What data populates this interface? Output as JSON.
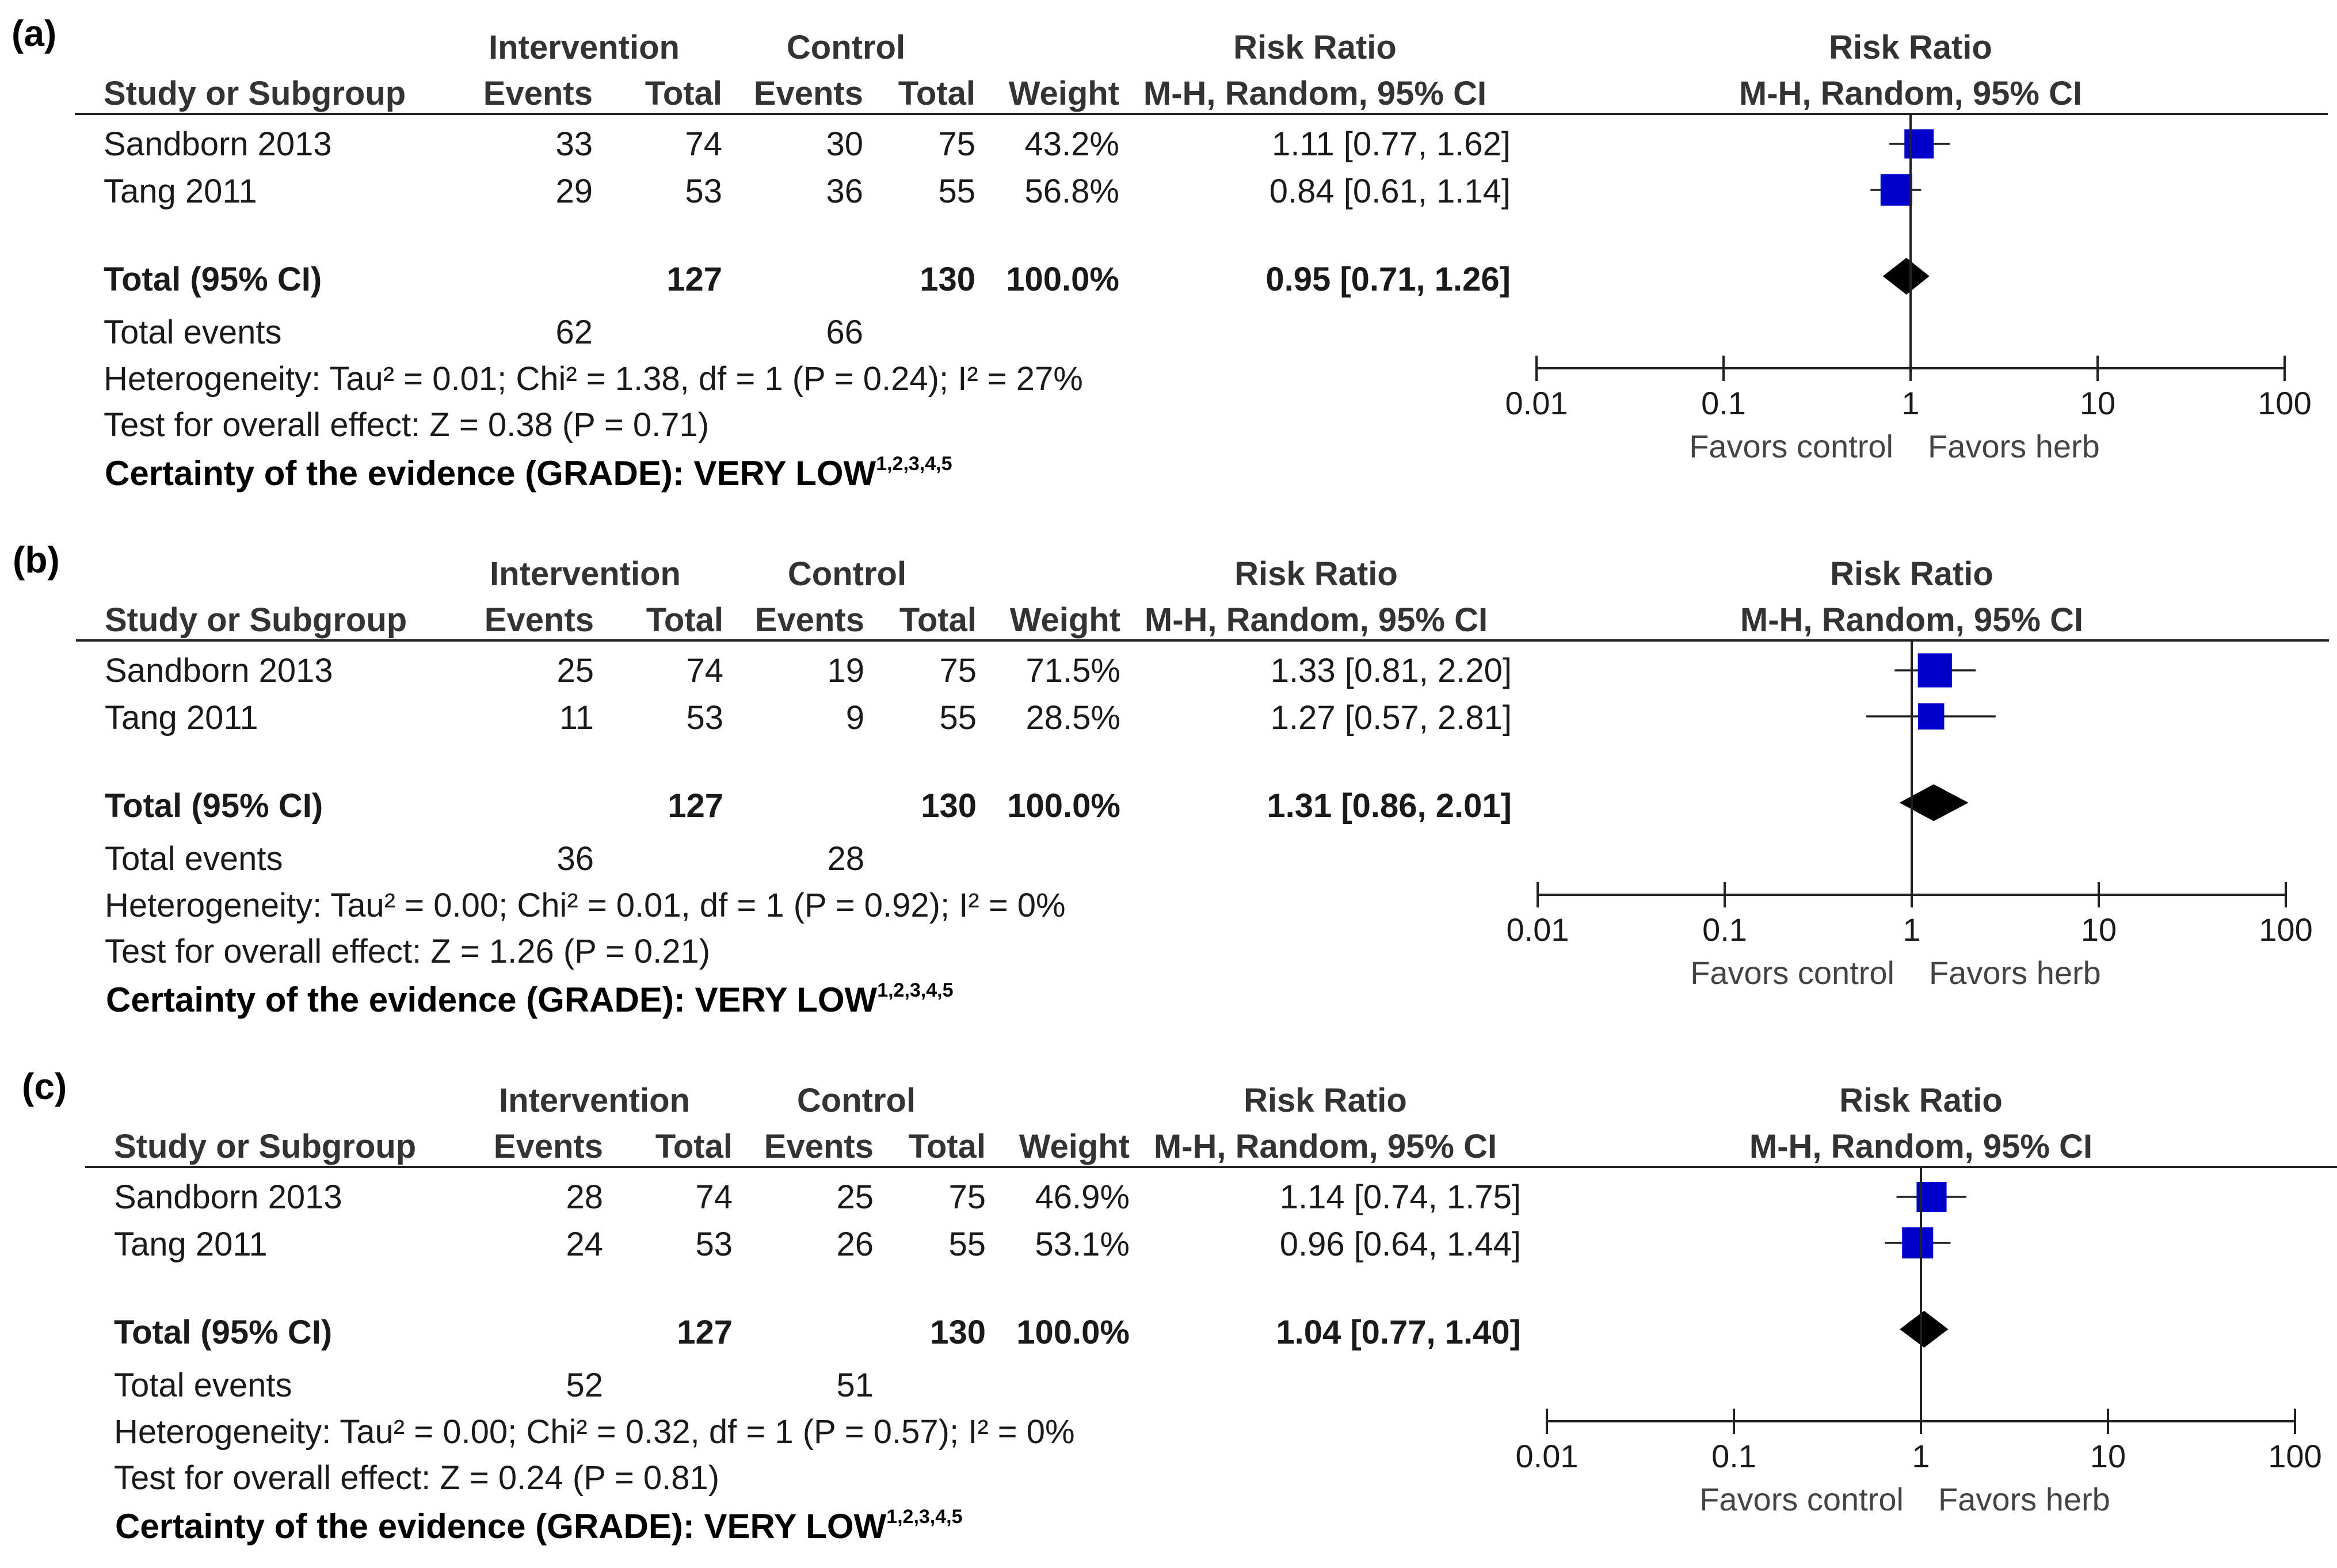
{
  "colors": {
    "study_marker": "#0000cc",
    "total_marker": "#000000",
    "text": "#1a1a1a",
    "axis": "#222222"
  },
  "panels": [
    {
      "label": "(a)",
      "headers": {
        "group_intervention": "Intervention",
        "group_control": "Control",
        "group_rr_table": "Risk Ratio",
        "group_rr_plot": "Risk Ratio",
        "study": "Study or Subgroup",
        "events1": "Events",
        "total1": "Total",
        "events2": "Events",
        "total2": "Total",
        "weight": "Weight",
        "method_table": "M-H, Random, 95% CI",
        "method_plot": "M-H, Random, 95% CI"
      },
      "studies": [
        {
          "name": "Sandborn 2013",
          "events1": "33",
          "total1": "74",
          "events2": "30",
          "total2": "75",
          "weight": "43.2%",
          "rr_text": "1.11 [0.77, 1.62]"
        },
        {
          "name": "Tang 2011",
          "events1": "29",
          "total1": "53",
          "events2": "36",
          "total2": "55",
          "weight": "56.8%",
          "rr_text": "0.84 [0.61, 1.14]"
        }
      ],
      "total": {
        "label": "Total (95% CI)",
        "total1": "127",
        "total2": "130",
        "weight": "100.0%",
        "rr_text": "0.95 [0.71, 1.26]"
      },
      "total_events": {
        "label": "Total events",
        "events1": "62",
        "events2": "66"
      },
      "heterogeneity": "Heterogeneity: Tau² = 0.01; Chi² = 1.38, df = 1 (P = 0.24); I² = 27%",
      "overall_effect": "Test for overall effect: Z = 0.38 (P = 0.71)",
      "grade": {
        "text": "Certainty of the evidence (GRADE): VERY LOW",
        "sup": "1,2,3,4,5"
      },
      "axis": {
        "ticks": [
          "0.01",
          "0.1",
          "1",
          "10",
          "100"
        ],
        "favors_left": "Favors control",
        "favors_right": "Favors herb"
      }
    },
    {
      "label": "(b)",
      "headers": {
        "group_intervention": "Intervention",
        "group_control": "Control",
        "group_rr_table": "Risk Ratio",
        "group_rr_plot": "Risk Ratio",
        "study": "Study or Subgroup",
        "events1": "Events",
        "total1": "Total",
        "events2": "Events",
        "total2": "Total",
        "weight": "Weight",
        "method_table": "M-H, Random, 95% CI",
        "method_plot": "M-H, Random, 95% CI"
      },
      "studies": [
        {
          "name": "Sandborn 2013",
          "events1": "25",
          "total1": "74",
          "events2": "19",
          "total2": "75",
          "weight": "71.5%",
          "rr_text": "1.33 [0.81, 2.20]"
        },
        {
          "name": "Tang 2011",
          "events1": "11",
          "total1": "53",
          "events2": "9",
          "total2": "55",
          "weight": "28.5%",
          "rr_text": "1.27 [0.57, 2.81]"
        }
      ],
      "total": {
        "label": "Total (95% CI)",
        "total1": "127",
        "total2": "130",
        "weight": "100.0%",
        "rr_text": "1.31 [0.86, 2.01]"
      },
      "total_events": {
        "label": "Total events",
        "events1": "36",
        "events2": "28"
      },
      "heterogeneity": "Heterogeneity: Tau² = 0.00; Chi² = 0.01, df = 1 (P = 0.92); I² = 0%",
      "overall_effect": "Test for overall effect: Z = 1.26 (P = 0.21)",
      "grade": {
        "text": "Certainty of the evidence (GRADE): VERY LOW",
        "sup": "1,2,3,4,5"
      },
      "axis": {
        "ticks": [
          "0.01",
          "0.1",
          "1",
          "10",
          "100"
        ],
        "favors_left": "Favors control",
        "favors_right": "Favors herb"
      }
    },
    {
      "label": "(c)",
      "headers": {
        "group_intervention": "Intervention",
        "group_control": "Control",
        "group_rr_table": "Risk Ratio",
        "group_rr_plot": "Risk Ratio",
        "study": "Study or Subgroup",
        "events1": "Events",
        "total1": "Total",
        "events2": "Events",
        "total2": "Total",
        "weight": "Weight",
        "method_table": "M-H, Random, 95% CI",
        "method_plot": "M-H, Random, 95% CI"
      },
      "studies": [
        {
          "name": "Sandborn 2013",
          "events1": "28",
          "total1": "74",
          "events2": "25",
          "total2": "75",
          "weight": "46.9%",
          "rr_text": "1.14 [0.74, 1.75]"
        },
        {
          "name": "Tang 2011",
          "events1": "24",
          "total1": "53",
          "events2": "26",
          "total2": "55",
          "weight": "53.1%",
          "rr_text": "0.96 [0.64, 1.44]"
        }
      ],
      "total": {
        "label": "Total (95% CI)",
        "total1": "127",
        "total2": "130",
        "weight": "100.0%",
        "rr_text": "1.04 [0.77, 1.40]"
      },
      "total_events": {
        "label": "Total events",
        "events1": "52",
        "events2": "51"
      },
      "heterogeneity": "Heterogeneity: Tau² = 0.00; Chi² = 0.32, df = 1 (P = 0.57); I² = 0%",
      "overall_effect": "Test for overall effect: Z = 0.24 (P = 0.81)",
      "grade": {
        "text": "Certainty of the evidence (GRADE): VERY LOW",
        "sup": "1,2,3,4,5"
      },
      "axis": {
        "ticks": [
          "0.01",
          "0.1",
          "1",
          "10",
          "100"
        ],
        "favors_left": "Favors control",
        "favors_right": "Favors herb"
      }
    }
  ],
  "chart_data": [
    {
      "type": "forest",
      "panel": "(a)",
      "scale": "log",
      "xlim": [
        0.01,
        100
      ],
      "reference_line": 1,
      "series": [
        {
          "name": "Sandborn 2013",
          "rr": 1.11,
          "lo": 0.77,
          "hi": 1.62,
          "weight": 43.2
        },
        {
          "name": "Tang 2011",
          "rr": 0.84,
          "lo": 0.61,
          "hi": 1.14,
          "weight": 56.8
        }
      ],
      "pooled": {
        "rr": 0.95,
        "lo": 0.71,
        "hi": 1.26
      }
    },
    {
      "type": "forest",
      "panel": "(b)",
      "scale": "log",
      "xlim": [
        0.01,
        100
      ],
      "reference_line": 1,
      "series": [
        {
          "name": "Sandborn 2013",
          "rr": 1.33,
          "lo": 0.81,
          "hi": 2.2,
          "weight": 71.5
        },
        {
          "name": "Tang 2011",
          "rr": 1.27,
          "lo": 0.57,
          "hi": 2.81,
          "weight": 28.5
        }
      ],
      "pooled": {
        "rr": 1.31,
        "lo": 0.86,
        "hi": 2.01
      }
    },
    {
      "type": "forest",
      "panel": "(c)",
      "scale": "log",
      "xlim": [
        0.01,
        100
      ],
      "reference_line": 1,
      "series": [
        {
          "name": "Sandborn 2013",
          "rr": 1.14,
          "lo": 0.74,
          "hi": 1.75,
          "weight": 46.9
        },
        {
          "name": "Tang 2011",
          "rr": 0.96,
          "lo": 0.64,
          "hi": 1.44,
          "weight": 53.1
        }
      ],
      "pooled": {
        "rr": 1.04,
        "lo": 0.77,
        "hi": 1.4
      }
    }
  ]
}
